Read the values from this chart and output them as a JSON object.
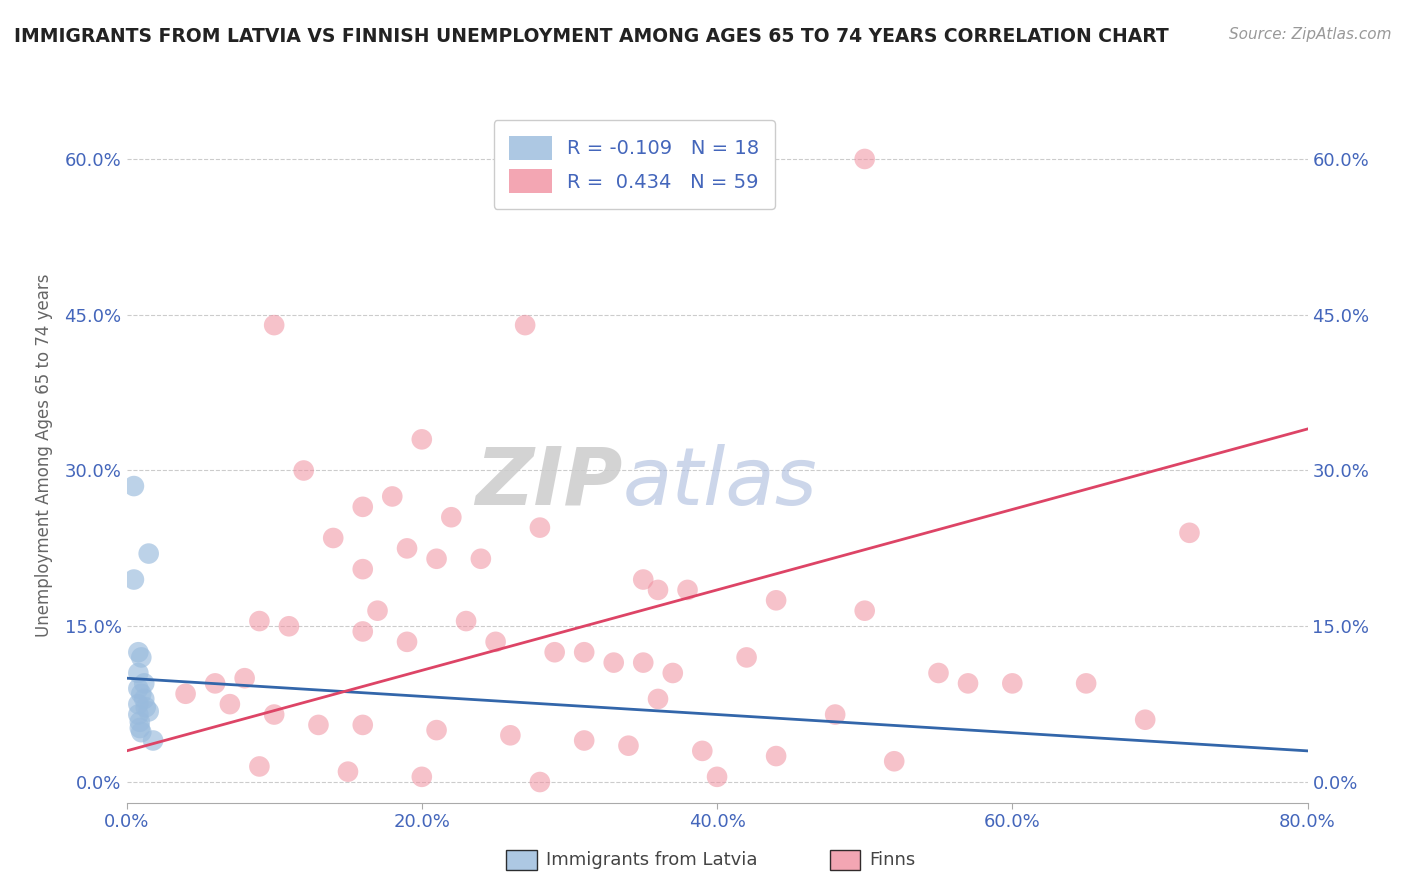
{
  "title": "IMMIGRANTS FROM LATVIA VS FINNISH UNEMPLOYMENT AMONG AGES 65 TO 74 YEARS CORRELATION CHART",
  "source": "Source: ZipAtlas.com",
  "ylabel": "Unemployment Among Ages 65 to 74 years",
  "xlim": [
    0.0,
    0.8
  ],
  "ylim": [
    -0.02,
    0.65
  ],
  "xtick_vals": [
    0.0,
    0.2,
    0.4,
    0.6,
    0.8
  ],
  "xtick_labels": [
    "0.0%",
    "20.0%",
    "40.0%",
    "60.0%",
    "80.0%"
  ],
  "ytick_vals": [
    0.0,
    0.15,
    0.3,
    0.45,
    0.6
  ],
  "ytick_labels": [
    "0.0%",
    "15.0%",
    "30.0%",
    "45.0%",
    "60.0%"
  ],
  "title_color": "#222222",
  "source_color": "#999999",
  "watermark_zip": "ZIP",
  "watermark_atlas": "atlas",
  "blue_color": "#99bbdd",
  "pink_color": "#f090a0",
  "blue_line_color": "#3366aa",
  "pink_line_color": "#dd4466",
  "axis_label_color": "#4466bb",
  "grid_color": "#cccccc",
  "scatter_blue_x": [
    0.005,
    0.005,
    0.008,
    0.008,
    0.008,
    0.008,
    0.008,
    0.009,
    0.009,
    0.01,
    0.01,
    0.01,
    0.012,
    0.012,
    0.013,
    0.015,
    0.015,
    0.018
  ],
  "scatter_blue_y": [
    0.285,
    0.195,
    0.125,
    0.105,
    0.09,
    0.075,
    0.065,
    0.058,
    0.052,
    0.12,
    0.085,
    0.048,
    0.095,
    0.08,
    0.072,
    0.22,
    0.068,
    0.04
  ],
  "scatter_pink_x": [
    0.5,
    0.27,
    0.1,
    0.2,
    0.12,
    0.18,
    0.16,
    0.22,
    0.28,
    0.14,
    0.19,
    0.21,
    0.24,
    0.16,
    0.35,
    0.36,
    0.38,
    0.44,
    0.5,
    0.17,
    0.23,
    0.09,
    0.11,
    0.16,
    0.19,
    0.25,
    0.29,
    0.31,
    0.33,
    0.35,
    0.37,
    0.55,
    0.6,
    0.65,
    0.72,
    0.08,
    0.06,
    0.04,
    0.07,
    0.1,
    0.13,
    0.16,
    0.21,
    0.26,
    0.31,
    0.34,
    0.39,
    0.44,
    0.52,
    0.09,
    0.15,
    0.2,
    0.28,
    0.4,
    0.57,
    0.42,
    0.36,
    0.48,
    0.69
  ],
  "scatter_pink_y": [
    0.6,
    0.44,
    0.44,
    0.33,
    0.3,
    0.275,
    0.265,
    0.255,
    0.245,
    0.235,
    0.225,
    0.215,
    0.215,
    0.205,
    0.195,
    0.185,
    0.185,
    0.175,
    0.165,
    0.165,
    0.155,
    0.155,
    0.15,
    0.145,
    0.135,
    0.135,
    0.125,
    0.125,
    0.115,
    0.115,
    0.105,
    0.105,
    0.095,
    0.095,
    0.24,
    0.1,
    0.095,
    0.085,
    0.075,
    0.065,
    0.055,
    0.055,
    0.05,
    0.045,
    0.04,
    0.035,
    0.03,
    0.025,
    0.02,
    0.015,
    0.01,
    0.005,
    0.0,
    0.005,
    0.095,
    0.12,
    0.08,
    0.065,
    0.06
  ],
  "blue_trend_x": [
    0.0,
    0.8
  ],
  "blue_trend_y": [
    0.1,
    0.03
  ],
  "pink_trend_x": [
    0.0,
    0.8
  ],
  "pink_trend_y": [
    0.03,
    0.34
  ]
}
